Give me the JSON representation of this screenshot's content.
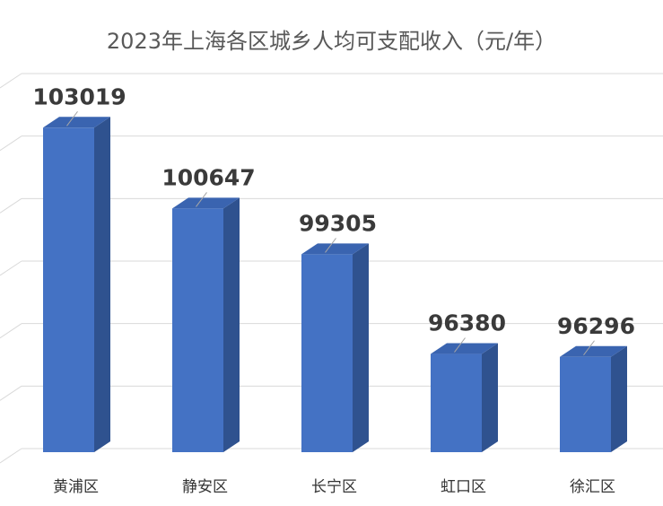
{
  "chart_data": {
    "type": "bar",
    "title": "2023年上海各区城乡人均可支配收入（元/年）",
    "categories": [
      "黄浦区",
      "静安区",
      "长宁区",
      "虹口区",
      "徐汇区"
    ],
    "values": [
      103019,
      100647,
      99305,
      96380,
      96296
    ],
    "data_labels": [
      "103019",
      "100647",
      "99305",
      "96380",
      "96296"
    ],
    "xlabel": "",
    "ylabel": "",
    "ylim": [
      93500,
      104500
    ],
    "grid": true,
    "legend": "none",
    "colors": {
      "bar_front": "#4472c4",
      "bar_side": "#2f528f",
      "bar_top": "#3a64b0",
      "grid": "#d9d9d9",
      "leader": "#a6a6a6"
    }
  }
}
